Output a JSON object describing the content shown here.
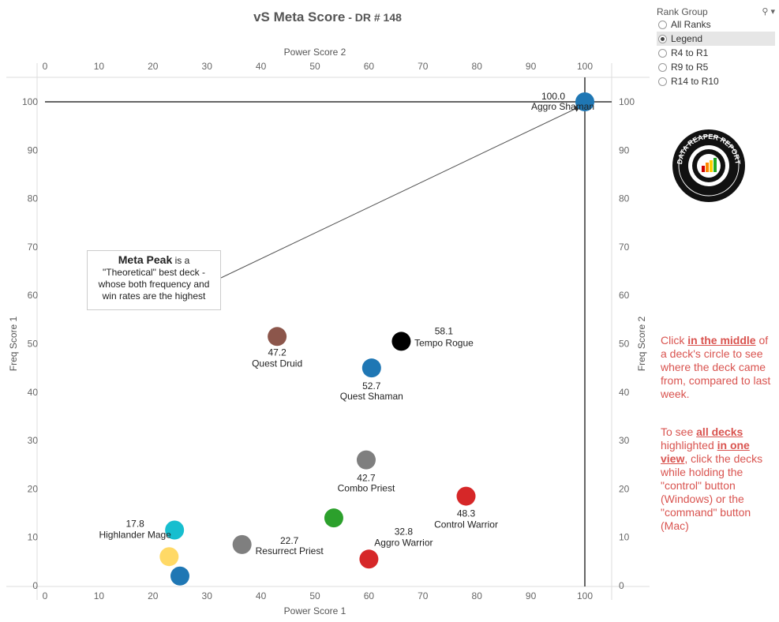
{
  "title": {
    "main": "vS Meta Score",
    "sub": " - DR # 148"
  },
  "colors": {
    "blue": "#1f77b4",
    "brown": "#8c564b",
    "black": "#000000",
    "gray": "#7f7f7f",
    "red": "#d62728",
    "green": "#2ca02c",
    "cyan": "#17becf",
    "yellow": "#ffd966",
    "note_red": "#d9534f"
  },
  "chart_data": {
    "type": "scatter",
    "xlabel": "Power Score 1",
    "x2label": "Power Score 2",
    "ylabel": "Freq Score 1",
    "y2label": "Freq Score 2",
    "xlim": [
      0,
      105
    ],
    "ylim": [
      0,
      105
    ],
    "xticks": [
      0,
      10,
      20,
      30,
      40,
      50,
      60,
      70,
      80,
      90,
      100
    ],
    "yticks": [
      0,
      10,
      20,
      30,
      40,
      50,
      60,
      70,
      80,
      90,
      100
    ],
    "reference_lines": {
      "x": 100,
      "y": 100
    },
    "points": [
      {
        "x": 100,
        "y": 100,
        "score": "100.0",
        "name": "Aggro Shaman",
        "color": "#1f77b4"
      },
      {
        "x": 43,
        "y": 51.5,
        "score": "47.2",
        "name": "Quest Druid",
        "color": "#8c564b"
      },
      {
        "x": 66,
        "y": 50.5,
        "score": "58.1",
        "name": "Tempo Rogue",
        "color": "#000000"
      },
      {
        "x": 60.5,
        "y": 45,
        "score": "52.7",
        "name": "Quest Shaman",
        "color": "#1f77b4"
      },
      {
        "x": 59.5,
        "y": 26,
        "score": "42.7",
        "name": "Combo Priest",
        "color": "#7f7f7f"
      },
      {
        "x": 78,
        "y": 18.5,
        "score": "48.3",
        "name": "Control Warrior",
        "color": "#d62728"
      },
      {
        "x": 53.5,
        "y": 14,
        "score": "",
        "name": "",
        "color": "#2ca02c"
      },
      {
        "x": 24,
        "y": 11.5,
        "score": "17.8",
        "name": "Highlander Mage",
        "color": "#17becf"
      },
      {
        "x": 36.5,
        "y": 8.5,
        "score": "22.7",
        "name": "Resurrect Priest",
        "color": "#7f7f7f"
      },
      {
        "x": 60,
        "y": 5.5,
        "score": "32.8",
        "name": "Aggro Warrior",
        "color": "#d62728"
      },
      {
        "x": 23,
        "y": 6,
        "score": "",
        "name": "",
        "color": "#ffd966"
      },
      {
        "x": 25,
        "y": 2,
        "score": "",
        "name": "",
        "color": "#1f77b4"
      }
    ]
  },
  "filter": {
    "title": "Rank Group",
    "options": [
      "All Ranks",
      "Legend",
      "R4 to R1",
      "R9 to R5",
      "R14 to R10"
    ],
    "selected": "Legend"
  },
  "logo_text": "DATA REAPER REPORT",
  "callout": {
    "bold": "Meta Peak",
    "line1": " is a",
    "line2": "\"Theoretical\" best deck -",
    "line3": "whose both frequency and",
    "line4": "win rates are the highest"
  },
  "note1": {
    "a": "Click ",
    "b": "in the middle",
    "c": " of a deck's circle to see where the deck came from, compared to last week."
  },
  "note2": {
    "a": "To see ",
    "b": "all decks ",
    "c": "highlighted ",
    "d": "in one view",
    "e": ", click the decks while holding the \"control\" button (Windows) or the \"command\" button (Mac)"
  }
}
